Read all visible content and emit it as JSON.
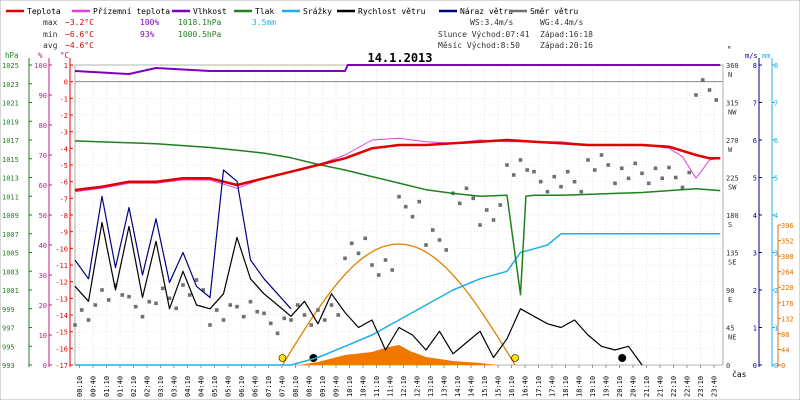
{
  "legend": [
    {
      "label": "Teplota",
      "color": "#e00000"
    },
    {
      "label": "Přízemní teplota",
      "color": "#e040e0"
    },
    {
      "label": "Vlhkost",
      "color": "#8000c0"
    },
    {
      "label": "Tlak",
      "color": "#208020"
    },
    {
      "label": "Srážky",
      "color": "#20b0e0"
    },
    {
      "label": "Rychlost větru",
      "color": "#000000"
    },
    {
      "label": "Náraz větru",
      "color": "#000080"
    },
    {
      "label": "Směr větru",
      "color": "#707070"
    }
  ],
  "stats": {
    "max_label": "max",
    "max_temp": "−3.2°C",
    "max_hum": "100%",
    "max_press": "1018.1hPa",
    "max_rain": "3.5mm",
    "min_label": "min",
    "min_temp": "−6.6°C",
    "min_hum": "93%",
    "min_press": "1000.5hPa",
    "avg_label": "avg",
    "avg_temp": "−4.6°C"
  },
  "wind_info": {
    "ws": "WS:3.4m/s",
    "wg": "WG:4.4m/s",
    "sun": "Slunce Východ:07:41",
    "sunset": "Západ:16:18",
    "moon": "Měsíc  Východ:8:50",
    "moonset": "Západ:20:16"
  },
  "chart_data": {
    "type": "line",
    "title": "14.1.2013",
    "xlabel": "čas",
    "x_ticks": [
      "00:10",
      "00:40",
      "01:10",
      "01:40",
      "02:10",
      "02:40",
      "03:10",
      "03:40",
      "04:10",
      "04:40",
      "05:10",
      "05:40",
      "06:10",
      "06:40",
      "07:10",
      "07:40",
      "08:10",
      "08:40",
      "09:10",
      "09:40",
      "10:10",
      "10:40",
      "11:10",
      "11:40",
      "12:10",
      "12:40",
      "13:10",
      "13:40",
      "14:10",
      "14:40",
      "15:10",
      "15:40",
      "16:10",
      "16:40",
      "17:10",
      "17:40",
      "18:10",
      "18:40",
      "19:10",
      "19:40",
      "20:10",
      "20:40",
      "21:10",
      "21:40",
      "22:10",
      "22:40",
      "23:10",
      "23:40"
    ],
    "axes": {
      "pressure": {
        "label": "hPa",
        "ticks": [
          "1025",
          "1023",
          "1021",
          "1019",
          "1017",
          "1015",
          "1013",
          "1011",
          "1009",
          "1007",
          "1005",
          "1003",
          "1001",
          "999",
          "997",
          "995",
          "993"
        ]
      },
      "humidity": {
        "label": "%",
        "ticks": [
          "100",
          "90",
          "80",
          "70",
          "60",
          "50",
          "40",
          "30",
          "20",
          "10",
          "0"
        ]
      },
      "temperature": {
        "label": "°C",
        "ticks": [
          "1",
          "0",
          "-1",
          "-2",
          "-3",
          "-4",
          "-5",
          "-6",
          "-7",
          "-8",
          "-9",
          "-10",
          "-11",
          "-12",
          "-13",
          "-14",
          "-15",
          "-16",
          "-17"
        ]
      },
      "direction": {
        "label": "°",
        "ticks": [
          "360 N",
          "315 NW",
          "270 W",
          "225 SW",
          "180 S",
          "135 SE",
          "90 E",
          "45 NE",
          "0"
        ]
      },
      "wind_speed": {
        "label": "m/s",
        "ticks": [
          "8",
          "7",
          "6",
          "5",
          "4",
          "3",
          "2",
          "1",
          "0"
        ]
      },
      "rain": {
        "label": "mm",
        "ticks": [
          "8",
          "7",
          "6",
          "5",
          "4",
          "3",
          "2",
          "1",
          "0"
        ]
      },
      "radiation": {
        "ticks": [
          "396",
          "352",
          "308",
          "264",
          "220",
          "176",
          "132",
          "88",
          "44",
          "0"
        ]
      }
    },
    "series": [
      {
        "name": "Teplota",
        "color": "#e00000",
        "x": [
          0,
          1,
          2,
          3,
          4,
          5,
          6,
          7,
          8,
          9,
          10,
          11,
          12,
          13,
          14,
          15,
          16,
          17,
          18,
          19,
          20,
          21,
          22,
          23,
          23.5,
          23.9
        ],
        "values": [
          -6.5,
          -6.3,
          -6.0,
          -6.0,
          -5.8,
          -5.8,
          -6.2,
          -5.8,
          -5.4,
          -5.0,
          -4.6,
          -4.0,
          -3.8,
          -3.8,
          -3.7,
          -3.6,
          -3.5,
          -3.6,
          -3.7,
          -3.8,
          -3.8,
          -3.8,
          -3.9,
          -4.4,
          -4.6,
          -4.6
        ]
      },
      {
        "name": "Přízemní teplota",
        "color": "#e040e0",
        "x": [
          0,
          1,
          2,
          3,
          4,
          5,
          6,
          7,
          8,
          9,
          10,
          11,
          12,
          13,
          14,
          15,
          16,
          17,
          18,
          19,
          20,
          21,
          22,
          22.5,
          23,
          23.5,
          23.9
        ],
        "values": [
          -6.6,
          -6.4,
          -6.1,
          -6.1,
          -5.9,
          -5.9,
          -6.4,
          -5.8,
          -5.4,
          -5.0,
          -4.4,
          -3.5,
          -3.4,
          -3.6,
          -3.7,
          -3.5,
          -3.6,
          -3.6,
          -3.6,
          -3.8,
          -3.8,
          -3.8,
          -4.0,
          -4.5,
          -5.8,
          -4.7,
          -4.6
        ]
      },
      {
        "name": "Vlhkost",
        "color": "#8000c0",
        "x": [
          0,
          2,
          3,
          5,
          10,
          10.1,
          23.9
        ],
        "values": [
          98,
          97,
          99,
          98,
          98,
          100,
          100
        ]
      },
      {
        "name": "Tlak",
        "color": "#208020",
        "x": [
          0,
          1,
          2,
          3,
          4,
          5,
          6,
          7,
          8,
          9,
          10,
          11,
          12,
          13,
          14,
          15,
          16,
          16.5,
          16.7,
          17,
          18,
          19,
          20,
          21,
          22,
          23,
          23.9
        ],
        "values": [
          1016.9,
          1016.8,
          1016.7,
          1016.6,
          1016.4,
          1016.2,
          1015.9,
          1015.6,
          1015.1,
          1014.4,
          1013.8,
          1013.1,
          1012.4,
          1011.7,
          1011.3,
          1011.0,
          1011.1,
          1000.5,
          1011.0,
          1011.1,
          1011.1,
          1011.2,
          1011.3,
          1011.4,
          1011.6,
          1011.8,
          1011.6
        ]
      },
      {
        "name": "Srážky",
        "color": "#20b0e0",
        "x": [
          0,
          8,
          9,
          10,
          11,
          12,
          13,
          14,
          15,
          16,
          16.5,
          17,
          17.5,
          18,
          19,
          20,
          21,
          22,
          23,
          23.9
        ],
        "values": [
          0,
          0,
          0.2,
          0.5,
          0.8,
          1.2,
          1.6,
          2.0,
          2.3,
          2.5,
          3.0,
          3.1,
          3.2,
          3.5,
          3.5,
          3.5,
          3.5,
          3.5,
          3.5,
          3.5
        ]
      },
      {
        "name": "Rychlost větru",
        "color": "#000000",
        "x": [
          0,
          0.5,
          1,
          1.5,
          2,
          2.5,
          3,
          3.5,
          4,
          4.5,
          5,
          5.5,
          6,
          6.5,
          7,
          7.5,
          8,
          8.5,
          9,
          9.5,
          10,
          10.5,
          11,
          11.5,
          12,
          12.5,
          13,
          13.5,
          14,
          14.5,
          15,
          15.5,
          16,
          16.5,
          17,
          17.5,
          18,
          18.5,
          19,
          19.5,
          20,
          20.5,
          21
        ],
        "values": [
          2.1,
          1.7,
          3.8,
          2.0,
          3.7,
          1.8,
          3.3,
          1.5,
          2.5,
          1.6,
          1.5,
          1.9,
          3.4,
          2.3,
          1.9,
          1.6,
          1.3,
          1.7,
          1.1,
          1.9,
          1.4,
          1.0,
          1.2,
          0.4,
          1.0,
          0.8,
          0.4,
          0.9,
          0.3,
          0.6,
          0.9,
          0.2,
          0.7,
          1.5,
          1.3,
          1.1,
          1.0,
          1.2,
          0.8,
          0.5,
          0.4,
          0.5,
          0
        ]
      },
      {
        "name": "Náraz větru",
        "color": "#000080",
        "x": [
          0,
          0.5,
          1,
          1.5,
          2,
          2.5,
          3,
          3.5,
          4,
          4.5,
          5,
          5.5,
          6,
          6.5,
          7,
          7.5,
          8
        ],
        "values": [
          2.8,
          2.3,
          4.5,
          2.6,
          4.2,
          2.4,
          3.9,
          2.2,
          3.0,
          2.1,
          1.8,
          5.2,
          4.9,
          2.8,
          2.3,
          1.9,
          1.5
        ]
      },
      {
        "name": "Směr větru",
        "color": "#707070",
        "x": [
          0,
          1,
          2,
          3,
          4,
          5,
          6,
          7,
          8,
          9,
          10,
          11,
          12,
          13,
          14,
          15,
          16,
          17,
          18,
          19,
          20,
          21,
          22,
          23
        ],
        "values": [
          60,
          90,
          70,
          80,
          90,
          60,
          70,
          50,
          60,
          60,
          140,
          120,
          190,
          150,
          200,
          180,
          240,
          220,
          220,
          240,
          230,
          230,
          225,
          330
        ]
      }
    ]
  }
}
